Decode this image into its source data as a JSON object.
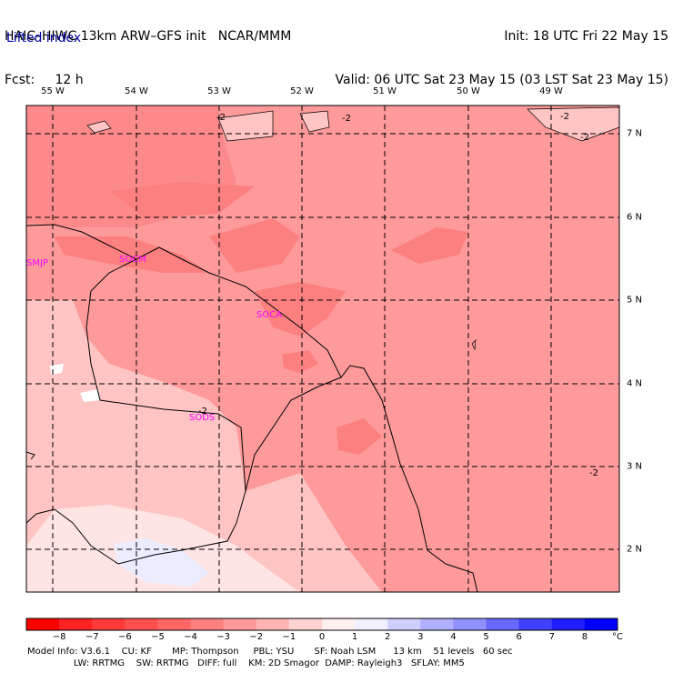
{
  "header": {
    "line1_left": "HAIC–HIWC 13km ARW–GFS init   NCAR/MMM",
    "line2_left": "Fcst:     12 h",
    "line1_right": "Init: 18 UTC Fri 22 May 15",
    "line2_right": "Valid: 06 UTC Sat 23 May 15 (03 LST Sat 23 May 15)",
    "variable": "Lifted index"
  },
  "longitudes": [
    "55 W",
    "54 W",
    "53 W",
    "52 W",
    "51 W",
    "50 W",
    "49 W"
  ],
  "latitudes": [
    "7 N",
    "6 N",
    "5 N",
    "4 N",
    "3 N",
    "2 N"
  ],
  "stations": [
    "SMJP",
    "SOCM",
    "SOCA",
    "SODS"
  ],
  "contour_labels": [
    "-2",
    "-2",
    "-2",
    "-2",
    "-2"
  ],
  "station_contour_label": "-2",
  "colorbar": {
    "labels": [
      "−8",
      "−7",
      "−6",
      "−5",
      "−4",
      "−3",
      "−2",
      "−1",
      "0",
      "1",
      "2",
      "3",
      "4",
      "5",
      "6",
      "7",
      "8"
    ],
    "unit": "°C",
    "colors": [
      "#ff0000",
      "#ff2222",
      "#ff3a3a",
      "#ff5050",
      "#ff6767",
      "#fd8080",
      "#fe9a9a",
      "#ffb4b4",
      "#ffd2d2",
      "#fff0f0",
      "#f0f0ff",
      "#cfcfff",
      "#b0b0ff",
      "#9090ff",
      "#6868ff",
      "#4040ff",
      "#1e1eff",
      "#0000ff"
    ]
  },
  "footer": {
    "line1": "Model Info: V3.6.1    CU: KF       MP: Thompson     PBL: YSU       SF: Noah LSM      13 km    51 levels   60 sec",
    "line2": "                LW: RRTMG    SW: RRTMG   DIFF: full    KM: 2D Smagor  DAMP: Rayleigh3   SFLAY: MM5"
  }
}
